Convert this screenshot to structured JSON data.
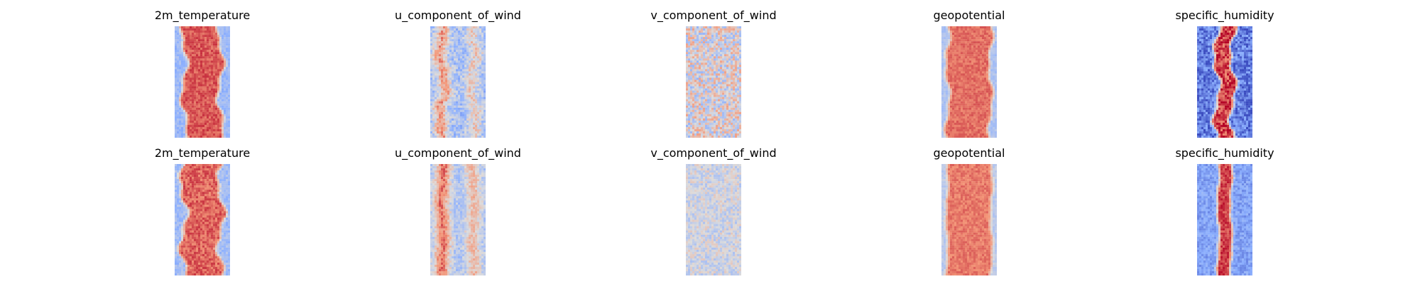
{
  "chart_data": {
    "type": "heatmap",
    "colormap": "coolwarm",
    "colormap_stops": [
      "#3b4cc0",
      "#8db0fe",
      "#dddcdc",
      "#f4987a",
      "#b40426"
    ],
    "axes_visible": false,
    "grid": false,
    "rows": 2,
    "columns": 5,
    "panels": [
      {
        "title": "2m_temperature",
        "pattern": "center_band",
        "band_width": 0.58,
        "band_level": 0.86,
        "edge_level": 0.3,
        "noise": 0.07,
        "wave": 0.06
      },
      {
        "title": "u_component_of_wind",
        "pattern": "streaks",
        "band_width": 0.12,
        "band_level": 0.72,
        "edge_level": 0.34,
        "noise": 0.13,
        "wave": 0.05
      },
      {
        "title": "v_component_of_wind",
        "pattern": "noise",
        "band_width": 0.0,
        "band_level": 0.5,
        "edge_level": 0.4,
        "noise": 0.22,
        "wave": 0.0
      },
      {
        "title": "geopotential",
        "pattern": "center_band",
        "band_width": 0.7,
        "band_level": 0.82,
        "edge_level": 0.35,
        "noise": 0.05,
        "wave": 0.04
      },
      {
        "title": "specific_humidity",
        "pattern": "center_band",
        "band_width": 0.22,
        "band_level": 0.9,
        "edge_level": 0.12,
        "noise": 0.14,
        "wave": 0.06
      },
      {
        "title": "2m_temperature",
        "pattern": "center_band",
        "band_width": 0.6,
        "band_level": 0.84,
        "edge_level": 0.32,
        "noise": 0.08,
        "wave": 0.07
      },
      {
        "title": "u_component_of_wind",
        "pattern": "streaks",
        "band_width": 0.14,
        "band_level": 0.8,
        "edge_level": 0.36,
        "noise": 0.1,
        "wave": 0.02
      },
      {
        "title": "v_component_of_wind",
        "pattern": "noise",
        "band_width": 0.0,
        "band_level": 0.46,
        "edge_level": 0.4,
        "noise": 0.12,
        "wave": 0.0
      },
      {
        "title": "geopotential",
        "pattern": "center_band",
        "band_width": 0.72,
        "band_level": 0.8,
        "edge_level": 0.4,
        "noise": 0.05,
        "wave": 0.02
      },
      {
        "title": "specific_humidity",
        "pattern": "center_band",
        "band_width": 0.16,
        "band_level": 0.9,
        "edge_level": 0.22,
        "noise": 0.08,
        "wave": 0.02
      }
    ]
  }
}
